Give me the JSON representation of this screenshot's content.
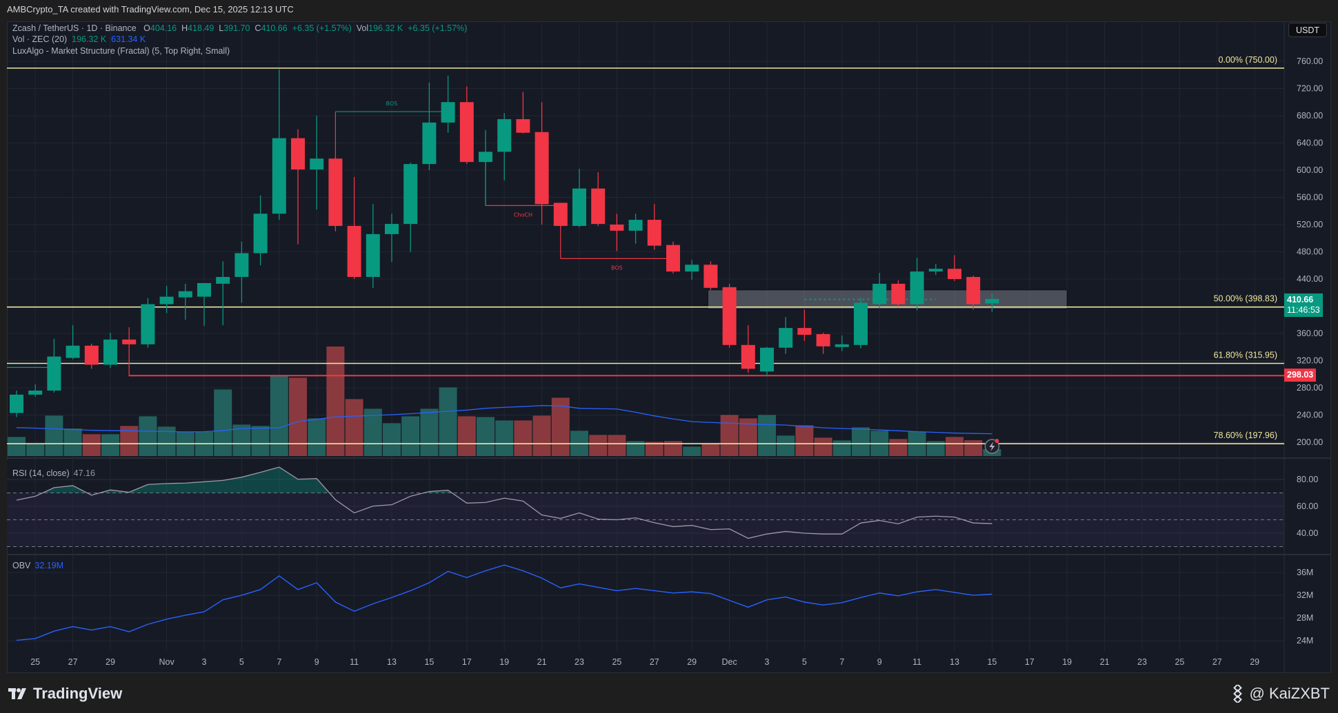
{
  "header": {
    "attribution": "AMBCrypto_TA created with TradingView.com, Dec 15, 2025 12:13 UTC"
  },
  "legend": {
    "symbol": "Zcash / TetherUS · 1D · Binance",
    "o_label": "O",
    "o": "404.16",
    "h_label": "H",
    "h": "418.49",
    "l_label": "L",
    "l": "391.70",
    "c_label": "C",
    "c": "410.66",
    "change": "+6.35 (+1.57%)",
    "vol_label": "Vol",
    "vol": "196.32 K",
    "vol_change": "+6.35 (+1.57%)",
    "volume_indicator": "Vol · ZEC (20)",
    "volume_value": "196.32 K",
    "volume_ma": "631.34 K",
    "structure_indicator": "LuxAlgo - Market Structure (Fractal) (5, Top Right, Small)"
  },
  "currency_button": "USDT",
  "price_tags": {
    "last_price": "410.66",
    "countdown": "11:46:53",
    "last_color": "#089981",
    "level": "298.03",
    "level_color": "#f23645"
  },
  "fib_levels": [
    {
      "label": "0.00% (750.00)",
      "price": 750.0
    },
    {
      "label": "50.00% (398.83)",
      "price": 398.83
    },
    {
      "label": "61.80% (315.95)",
      "price": 315.95
    },
    {
      "label": "78.60% (197.96)",
      "price": 197.96
    }
  ],
  "rsi_legend": {
    "label": "RSI (14, close)",
    "value": "47.16"
  },
  "obv_legend": {
    "label": "OBV",
    "value": "32.19M"
  },
  "footer": {
    "logo": "TradingView",
    "author": "@ KaiZXBT"
  },
  "colors": {
    "up": "#089981",
    "down": "#f23645",
    "fib": "#f0e8a0",
    "volume_ma": "#2962ff",
    "rsi": "#9e9aa8",
    "obv": "#2962ff",
    "background": "#161a25"
  },
  "icons": {
    "logo": "tradingview-logo-icon",
    "author": "binance-logo-icon",
    "alert": "lightning-alert-icon"
  },
  "chart_data": {
    "type": "candlestick",
    "symbol": "Zcash / TetherUS",
    "interval": "1D",
    "year": 2025,
    "price_axis": {
      "ylim": [
        182,
        790
      ],
      "ticks": [
        "760.00",
        "720.00",
        "680.00",
        "640.00",
        "600.00",
        "560.00",
        "520.00",
        "480.00",
        "440.00",
        "360.00",
        "320.00",
        "280.00",
        "240.00",
        "200.00"
      ]
    },
    "x_ticks": [
      {
        "date": "10-25",
        "label": "25"
      },
      {
        "date": "10-27",
        "label": "27"
      },
      {
        "date": "10-29",
        "label": "29"
      },
      {
        "date": "11-01",
        "label": "Nov"
      },
      {
        "date": "11-03",
        "label": "3"
      },
      {
        "date": "11-05",
        "label": "5"
      },
      {
        "date": "11-07",
        "label": "7"
      },
      {
        "date": "11-09",
        "label": "9"
      },
      {
        "date": "11-11",
        "label": "11"
      },
      {
        "date": "11-13",
        "label": "13"
      },
      {
        "date": "11-15",
        "label": "15"
      },
      {
        "date": "11-17",
        "label": "17"
      },
      {
        "date": "11-19",
        "label": "19"
      },
      {
        "date": "11-21",
        "label": "21"
      },
      {
        "date": "11-23",
        "label": "23"
      },
      {
        "date": "11-25",
        "label": "25"
      },
      {
        "date": "11-27",
        "label": "27"
      },
      {
        "date": "11-29",
        "label": "29"
      },
      {
        "date": "12-01",
        "label": "Dec"
      },
      {
        "date": "12-03",
        "label": "3"
      },
      {
        "date": "12-05",
        "label": "5"
      },
      {
        "date": "12-07",
        "label": "7"
      },
      {
        "date": "12-09",
        "label": "9"
      },
      {
        "date": "12-11",
        "label": "11"
      },
      {
        "date": "12-13",
        "label": "13"
      },
      {
        "date": "12-15",
        "label": "15"
      },
      {
        "date": "12-17",
        "label": "17"
      },
      {
        "date": "12-19",
        "label": "19"
      },
      {
        "date": "12-21",
        "label": "21"
      },
      {
        "date": "12-23",
        "label": "23"
      },
      {
        "date": "12-25",
        "label": "25"
      },
      {
        "date": "12-27",
        "label": "27"
      },
      {
        "date": "12-29",
        "label": "29"
      }
    ],
    "candles_columns": [
      "date",
      "open",
      "high",
      "low",
      "close",
      "volume_k"
    ],
    "candles": [
      [
        "10-24",
        243,
        276,
        237,
        270,
        540
      ],
      [
        "10-25",
        270,
        285,
        267,
        276,
        360
      ],
      [
        "10-26",
        276,
        352,
        273,
        326,
        1144
      ],
      [
        "10-27",
        324,
        372,
        322,
        342,
        780
      ],
      [
        "10-28",
        342,
        345,
        308,
        314,
        618
      ],
      [
        "10-29",
        314,
        361,
        309,
        351,
        618
      ],
      [
        "10-30",
        351,
        369,
        297,
        344,
        852
      ],
      [
        "10-31",
        344,
        412,
        339,
        403,
        1125
      ],
      [
        "11-01",
        403,
        430,
        390,
        414,
        832
      ],
      [
        "11-02",
        413,
        433,
        380,
        422,
        696
      ],
      [
        "11-03",
        414,
        434,
        371,
        434,
        683
      ],
      [
        "11-04",
        433,
        466,
        372,
        443,
        1885
      ],
      [
        "11-05",
        443,
        495,
        405,
        478,
        890
      ],
      [
        "11-06",
        478,
        563,
        460,
        536,
        852
      ],
      [
        "11-07",
        536,
        748,
        527,
        647,
        2275
      ],
      [
        "11-08",
        647,
        660,
        491,
        601,
        2217
      ],
      [
        "11-09",
        601,
        680,
        542,
        617,
        1066
      ],
      [
        "11-10",
        617,
        620,
        510,
        518,
        3100
      ],
      [
        "11-11",
        518,
        590,
        440,
        443,
        1612
      ],
      [
        "11-12",
        443,
        550,
        427,
        506,
        1339
      ],
      [
        "11-13",
        506,
        536,
        465,
        521,
        930
      ],
      [
        "11-14",
        521,
        611,
        480,
        609,
        1125
      ],
      [
        "11-15",
        609,
        729,
        600,
        670,
        1339
      ],
      [
        "11-16",
        670,
        739,
        655,
        700,
        1944
      ],
      [
        "11-17",
        700,
        723,
        609,
        612,
        1125
      ],
      [
        "11-18",
        612,
        659,
        548,
        627,
        1105
      ],
      [
        "11-19",
        627,
        684,
        585,
        675,
        1008
      ],
      [
        "11-20",
        675,
        715,
        654,
        655,
        1008
      ],
      [
        "11-21",
        656,
        700,
        520,
        550,
        1144
      ],
      [
        "11-22",
        552,
        552,
        515,
        518,
        1651
      ],
      [
        "11-23",
        518,
        602,
        516,
        573,
        715
      ],
      [
        "11-24",
        573,
        597,
        518,
        521,
        598
      ],
      [
        "11-25",
        520,
        536,
        481,
        511,
        598
      ],
      [
        "11-26",
        511,
        536,
        492,
        527,
        423
      ],
      [
        "11-27",
        527,
        550,
        483,
        489,
        403
      ],
      [
        "11-28",
        490,
        495,
        448,
        451,
        423
      ],
      [
        "11-29",
        451,
        468,
        439,
        461,
        267
      ],
      [
        "11-30",
        461,
        466,
        424,
        427,
        364
      ],
      [
        "12-01",
        428,
        433,
        339,
        343,
        1164
      ],
      [
        "12-02",
        343,
        372,
        302,
        308,
        1066
      ],
      [
        "12-03",
        304,
        340,
        297,
        339,
        1164
      ],
      [
        "12-04",
        339,
        384,
        330,
        368,
        579
      ],
      [
        "12-05",
        368,
        395,
        349,
        358,
        871
      ],
      [
        "12-06",
        359,
        361,
        330,
        341,
        520
      ],
      [
        "12-07",
        340,
        357,
        334,
        344,
        442
      ],
      [
        "12-08",
        343,
        412,
        338,
        405,
        813
      ],
      [
        "12-09",
        403,
        449,
        397,
        433,
        715
      ],
      [
        "12-10",
        433,
        438,
        399,
        403,
        481
      ],
      [
        "12-11",
        403,
        471,
        394,
        451,
        696
      ],
      [
        "12-12",
        451,
        462,
        446,
        455,
        423
      ],
      [
        "12-13",
        455,
        475,
        437,
        440,
        540
      ],
      [
        "12-14",
        443,
        445,
        395,
        403,
        450
      ],
      [
        "12-15",
        404.16,
        418.49,
        391.7,
        410.66,
        196.32
      ]
    ],
    "volume_ma_k": [
      806,
      790,
      770,
      750,
      730,
      720,
      715,
      705,
      695,
      683,
      690,
      720,
      780,
      790,
      800,
      975,
      1040,
      1105,
      1130,
      1150,
      1170,
      1200,
      1235,
      1268,
      1300,
      1352,
      1380,
      1400,
      1430,
      1420,
      1352,
      1340,
      1332,
      1240,
      1137,
      1050,
      975,
      950,
      930,
      910,
      890,
      877,
      840,
      800,
      780,
      760,
      740,
      715,
      690,
      670,
      650,
      640,
      631.34
    ],
    "rsi": {
      "ylim": [
        25,
        95
      ],
      "ticks": [
        "80.00",
        "60.00",
        "40.00"
      ],
      "bands": [
        70,
        50,
        30
      ],
      "values": [
        64.6,
        67.5,
        73.9,
        75.4,
        68.3,
        72.2,
        70.5,
        76.3,
        77,
        77.3,
        78.3,
        79.3,
        81.7,
        85.3,
        89.2,
        80.2,
        80.7,
        64.9,
        55.1,
        60.2,
        61.2,
        67.5,
        71,
        72,
        62.4,
        62.9,
        66.1,
        63.9,
        53.6,
        51,
        55.1,
        50.5,
        50,
        51.4,
        47.8,
        44.9,
        45.8,
        42.7,
        43.2,
        36.2,
        39.4,
        41.3,
        40,
        39.4,
        39.4,
        47.6,
        49.5,
        47,
        52,
        52.7,
        52,
        47.6,
        47.16
      ]
    },
    "obv_m": {
      "ticks": [
        "36M",
        "32M",
        "28M",
        "24M"
      ],
      "values": [
        24.1,
        24.4,
        25.7,
        26.5,
        25.9,
        26.5,
        25.6,
        26.9,
        27.8,
        28.5,
        29.1,
        31.2,
        32,
        33,
        35.4,
        33,
        34.2,
        30.8,
        29.2,
        30.5,
        31.6,
        32.8,
        34.2,
        36.2,
        35.1,
        36.3,
        37.3,
        36.3,
        35,
        33.3,
        34,
        33.4,
        32.8,
        33.2,
        32.8,
        32.4,
        32.6,
        32.3,
        31.1,
        29.9,
        31.2,
        31.7,
        30.8,
        30.3,
        30.7,
        31.6,
        32.4,
        31.9,
        32.6,
        33,
        32.5,
        32,
        32.19
      ]
    },
    "structure": [
      {
        "label": "BOS",
        "color": "#089981",
        "price": 686,
        "from": "11-10",
        "to": "11-16",
        "anchor_price": 617,
        "anchor_color": "#f23645"
      },
      {
        "label": "ChoCH",
        "color": "#f23645",
        "price": 548,
        "from": "11-18",
        "to": "11-22",
        "anchor_price": 612,
        "anchor_color": "#089981"
      },
      {
        "label": "BOS",
        "color": "#f23645",
        "price": 470,
        "from": "11-22",
        "to": "11-28",
        "anchor_price": 518,
        "anchor_color": "#f23645"
      }
    ],
    "order_block": {
      "from": "11-30",
      "to": "12-19",
      "top": 424,
      "bottom": 396,
      "mid_line": 410,
      "mid_from": "12-05",
      "mid_to": "12-12"
    },
    "support_line": {
      "price": 298.03,
      "from": "10-30"
    },
    "early_line": {
      "price": 310,
      "to": "10-26"
    }
  }
}
